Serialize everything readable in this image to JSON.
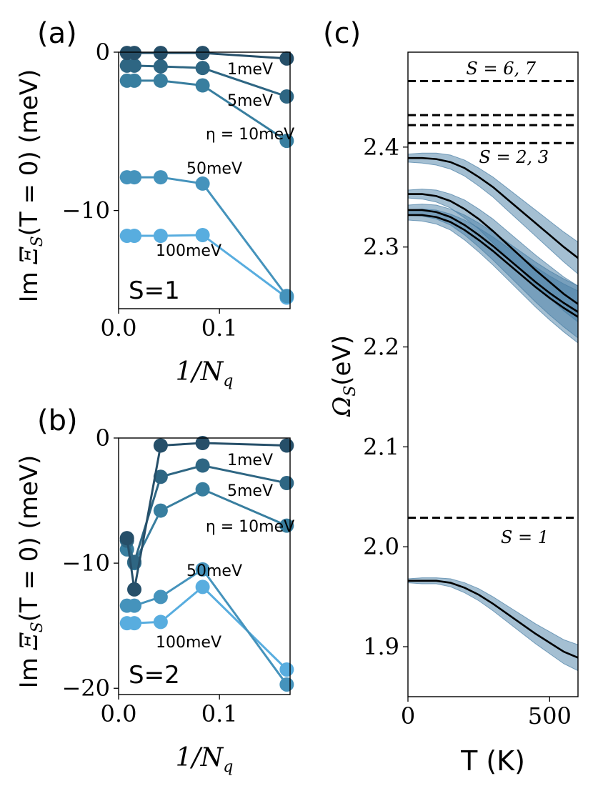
{
  "chart_data": [
    {
      "panel_label": "(a)",
      "type": "line",
      "ylabel_prefix": "Im ",
      "ylabel_math": "Ξ",
      "ylabel_sub": "S",
      "ylabel_suffix": "(T = 0) (meV)",
      "xlabel": "1/N",
      "xlabel_sub": "q",
      "xlim": [
        0,
        0.17
      ],
      "ylim": [
        -16.2,
        0
      ],
      "xticks": [
        0.0,
        0.1
      ],
      "xtick_labels": [
        "0.0",
        "0.1"
      ],
      "yticks": [
        0,
        -10
      ],
      "ytick_labels": [
        "0",
        "−10"
      ],
      "x": [
        0.0083,
        0.0156,
        0.0417,
        0.0833,
        0.1667
      ],
      "state_label": "S=1",
      "series": [
        {
          "name": "1meV",
          "color": "#264f69",
          "values": [
            -0.05,
            -0.05,
            -0.05,
            -0.05,
            -0.4
          ]
        },
        {
          "name": "5meV",
          "color": "#2e6683",
          "values": [
            -0.85,
            -0.85,
            -0.9,
            -1.0,
            -2.8
          ]
        },
        {
          "name": "η = 10meV",
          "color": "#387e9f",
          "values": [
            -1.8,
            -1.8,
            -1.8,
            -2.1,
            -5.6
          ]
        },
        {
          "name": "50meV",
          "color": "#4593bc",
          "values": [
            -7.9,
            -7.9,
            -7.9,
            -8.3,
            -15.4
          ]
        },
        {
          "name": "100meV",
          "color": "#58addf",
          "values": [
            -11.6,
            -11.6,
            -11.6,
            -11.55,
            -15.5
          ]
        }
      ]
    },
    {
      "panel_label": "(b)",
      "type": "line",
      "ylabel_prefix": "Im ",
      "ylabel_math": "Ξ",
      "ylabel_sub": "S",
      "ylabel_suffix": "(T = 0) (meV)",
      "xlabel": "1/N",
      "xlabel_sub": "q",
      "xlim": [
        0,
        0.17
      ],
      "ylim": [
        -20.5,
        0
      ],
      "xticks": [
        0.0,
        0.1
      ],
      "xtick_labels": [
        "0.0",
        "0.1"
      ],
      "yticks": [
        0,
        -10,
        -20
      ],
      "ytick_labels": [
        "0",
        "−10",
        "−20"
      ],
      "x": [
        0.0083,
        0.0156,
        0.0417,
        0.0833,
        0.1667
      ],
      "state_label": "S=2",
      "series": [
        {
          "name": "1meV",
          "color": "#264f69",
          "values": [
            -8.0,
            -12.1,
            -0.6,
            -0.4,
            -0.6
          ]
        },
        {
          "name": "5meV",
          "color": "#2e6683",
          "values": [
            -8.2,
            -9.9,
            -3.1,
            -2.2,
            -3.6
          ]
        },
        {
          "name": "η = 10meV",
          "color": "#387e9f",
          "values": [
            -8.9,
            -10.0,
            -5.8,
            -4.1,
            -7.0
          ]
        },
        {
          "name": "50meV",
          "color": "#4593bc",
          "values": [
            -13.4,
            -13.4,
            -12.7,
            -10.5,
            -19.7
          ]
        },
        {
          "name": "100meV",
          "color": "#58addf",
          "values": [
            -14.8,
            -14.8,
            -14.7,
            -11.9,
            -18.5
          ]
        }
      ]
    },
    {
      "panel_label": "(c)",
      "type": "line",
      "ylabel_math": "Ω",
      "ylabel_sub": "S",
      "ylabel_suffix": "(eV)",
      "xlabel": "T (K)",
      "xlim": [
        0,
        600
      ],
      "ylim": [
        1.85,
        2.495
      ],
      "xticks": [
        0,
        500
      ],
      "xtick_labels": [
        "0",
        "500"
      ],
      "yticks": [
        1.9,
        2.0,
        2.1,
        2.2,
        2.3,
        2.4
      ],
      "ytick_labels": [
        "1.9",
        "2.0",
        "2.1",
        "2.2",
        "2.3",
        "2.4"
      ],
      "dashed_levels": [
        2.466,
        2.432,
        2.422,
        2.404,
        2.029
      ],
      "annotations": [
        "S = 6, 7",
        "S = 2, 3",
        "S = 1"
      ],
      "T": [
        0,
        50,
        100,
        150,
        200,
        250,
        300,
        350,
        400,
        450,
        500,
        550,
        600
      ],
      "series": [
        {
          "name": "S=1",
          "values": [
            1.966,
            1.966,
            1.966,
            1.964,
            1.959,
            1.952,
            1.943,
            1.933,
            1.923,
            1.913,
            1.904,
            1.895,
            1.889
          ],
          "band": [
            0.0,
            0.001,
            0.001,
            0.002,
            0.003,
            0.004,
            0.005,
            0.006,
            0.007,
            0.008,
            0.009,
            0.01,
            0.011
          ]
        },
        {
          "name": "S=2",
          "values": [
            2.389,
            2.389,
            2.388,
            2.385,
            2.379,
            2.37,
            2.36,
            2.348,
            2.336,
            2.324,
            2.312,
            2.3,
            2.289
          ],
          "band": [
            0.002,
            0.003,
            0.004,
            0.005,
            0.006,
            0.007,
            0.008,
            0.009,
            0.01,
            0.011,
            0.012,
            0.013,
            0.014
          ]
        },
        {
          "name": "S=3",
          "values": [
            2.353,
            2.353,
            2.351,
            2.346,
            2.338,
            2.328,
            2.316,
            2.303,
            2.29,
            2.277,
            2.265,
            2.253,
            2.243
          ],
          "band": [
            0.002,
            0.003,
            0.004,
            0.005,
            0.007,
            0.008,
            0.01,
            0.011,
            0.012,
            0.013,
            0.014,
            0.015,
            0.016
          ]
        },
        {
          "name": "S=4",
          "values": [
            2.337,
            2.337,
            2.335,
            2.33,
            2.322,
            2.312,
            2.301,
            2.289,
            2.277,
            2.265,
            2.254,
            2.244,
            2.235
          ],
          "band": [
            0.003,
            0.004,
            0.005,
            0.006,
            0.008,
            0.01,
            0.012,
            0.014,
            0.016,
            0.018,
            0.02,
            0.022,
            0.024
          ]
        },
        {
          "name": "S=5",
          "values": [
            2.332,
            2.332,
            2.33,
            2.325,
            2.317,
            2.307,
            2.296,
            2.284,
            2.272,
            2.26,
            2.249,
            2.239,
            2.23
          ],
          "band": [
            0.003,
            0.004,
            0.005,
            0.006,
            0.008,
            0.01,
            0.012,
            0.014,
            0.016,
            0.018,
            0.02,
            0.022,
            0.024
          ]
        }
      ]
    }
  ],
  "colors": {
    "line": "#000000",
    "band": "#4a7fa5"
  }
}
